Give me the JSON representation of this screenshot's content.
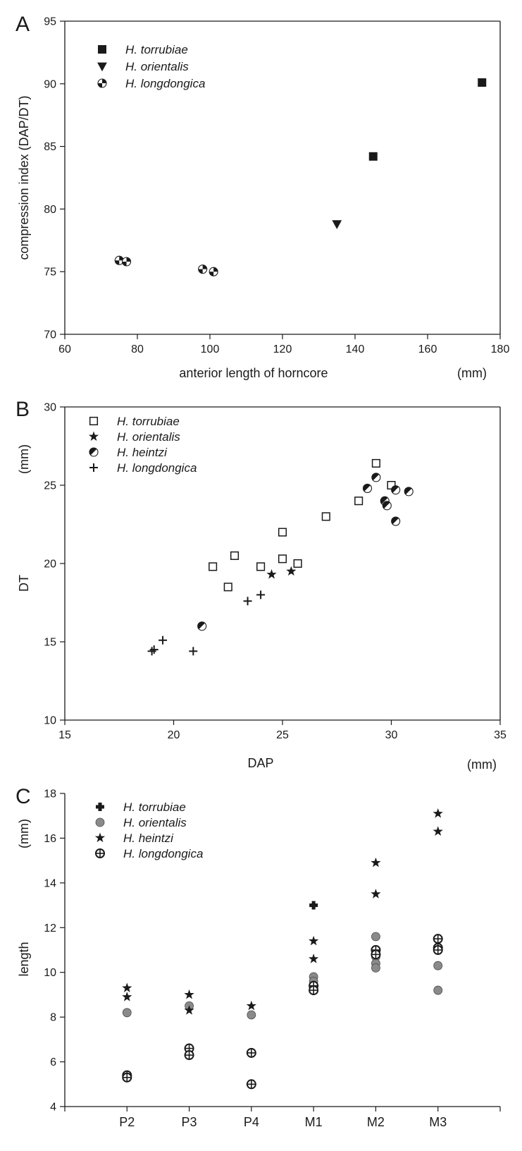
{
  "figure": {
    "panels": [
      "A",
      "B",
      "C"
    ]
  },
  "chart_data": [
    {
      "panel": "A",
      "type": "scatter",
      "title": "",
      "xlabel": "anterior length of horncore",
      "xunit": "(mm)",
      "ylabel": "compression index (DAP/DT)",
      "yunit": "",
      "xlim": [
        60,
        180
      ],
      "ylim": [
        70,
        95
      ],
      "xticks": [
        60,
        80,
        100,
        120,
        140,
        160,
        180
      ],
      "yticks": [
        70,
        75,
        80,
        85,
        90,
        95
      ],
      "grid": false,
      "legend_position": "top-left",
      "series": [
        {
          "name": "H. torrubiae",
          "marker": "filled-square",
          "color": "#1a1a1a",
          "points": [
            [
              145,
              84.2
            ],
            [
              175,
              90.1
            ]
          ]
        },
        {
          "name": "H. orientalis",
          "marker": "filled-triangle-down",
          "color": "#1a1a1a",
          "points": [
            [
              135,
              78.8
            ]
          ]
        },
        {
          "name": "H. longdongica",
          "marker": "checker-circle",
          "color": "#1a1a1a",
          "points": [
            [
              75,
              75.9
            ],
            [
              77,
              75.8
            ],
            [
              98,
              75.2
            ],
            [
              101,
              75.0
            ]
          ]
        }
      ]
    },
    {
      "panel": "B",
      "type": "scatter",
      "title": "",
      "xlabel": "DAP",
      "xunit": "(mm)",
      "ylabel": "DT",
      "yunit": "(mm)",
      "xlim": [
        15,
        35
      ],
      "ylim": [
        10,
        30
      ],
      "xticks": [
        15,
        20,
        25,
        30,
        35
      ],
      "yticks": [
        10,
        15,
        20,
        25,
        30
      ],
      "grid": false,
      "legend_position": "top-left",
      "series": [
        {
          "name": "H. torrubiae",
          "marker": "open-square",
          "color": "#1a1a1a",
          "points": [
            [
              21.8,
              19.8
            ],
            [
              22.5,
              18.5
            ],
            [
              22.8,
              20.5
            ],
            [
              24,
              19.8
            ],
            [
              25,
              20.3
            ],
            [
              25,
              22
            ],
            [
              25.7,
              20
            ],
            [
              27,
              23
            ],
            [
              28.5,
              24
            ],
            [
              29.3,
              26.4
            ],
            [
              30,
              25
            ]
          ]
        },
        {
          "name": "H. orientalis",
          "marker": "star",
          "color": "#1a1a1a",
          "points": [
            [
              24.5,
              19.3
            ],
            [
              25.4,
              19.5
            ]
          ]
        },
        {
          "name": "H. heintzi",
          "marker": "half-circle",
          "color": "#1a1a1a",
          "points": [
            [
              21.3,
              16
            ],
            [
              28.9,
              24.8
            ],
            [
              29.3,
              25.5
            ],
            [
              29.7,
              24
            ],
            [
              29.8,
              23.7
            ],
            [
              30.2,
              24.7
            ],
            [
              30.2,
              22.7
            ],
            [
              30.8,
              24.6
            ]
          ]
        },
        {
          "name": "H. longdongica",
          "marker": "plus",
          "color": "#1a1a1a",
          "points": [
            [
              19,
              14.4
            ],
            [
              19.1,
              14.5
            ],
            [
              19.5,
              15.1
            ],
            [
              20.9,
              14.4
            ],
            [
              23.4,
              17.6
            ],
            [
              24,
              18
            ]
          ]
        }
      ]
    },
    {
      "panel": "C",
      "type": "scatter",
      "title": "",
      "xlabel": "",
      "xunit": "",
      "ylabel": "length",
      "yunit": "(mm)",
      "categories": [
        "P2",
        "P3",
        "P4",
        "M1",
        "M2",
        "M3"
      ],
      "ylim": [
        4,
        18
      ],
      "yticks": [
        4,
        6,
        8,
        10,
        12,
        14,
        16,
        18
      ],
      "grid": false,
      "legend_position": "top-left",
      "series": [
        {
          "name": "H. torrubiae",
          "marker": "bold-cross",
          "color": "#1a1a1a",
          "points": [
            [
              "M1",
              13.0
            ]
          ]
        },
        {
          "name": "H. orientalis",
          "marker": "gray-circle",
          "color": "#8a8a8a",
          "points": [
            [
              "P2",
              8.2
            ],
            [
              "P3",
              8.5
            ],
            [
              "P4",
              8.1
            ],
            [
              "M1",
              9.8
            ],
            [
              "M1",
              9.6
            ],
            [
              "M1",
              9.4
            ],
            [
              "M2",
              11.6
            ],
            [
              "M2",
              11.0
            ],
            [
              "M2",
              10.7
            ],
            [
              "M2",
              10.4
            ],
            [
              "M2",
              10.2
            ],
            [
              "M3",
              10.3
            ],
            [
              "M3",
              9.2
            ]
          ]
        },
        {
          "name": "H. heintzi",
          "marker": "star",
          "color": "#1a1a1a",
          "points": [
            [
              "P2",
              9.3
            ],
            [
              "P2",
              8.9
            ],
            [
              "P3",
              9.0
            ],
            [
              "P3",
              8.3
            ],
            [
              "P4",
              8.5
            ],
            [
              "M1",
              11.4
            ],
            [
              "M1",
              10.6
            ],
            [
              "M2",
              14.9
            ],
            [
              "M2",
              13.5
            ],
            [
              "M3",
              17.1
            ],
            [
              "M3",
              16.3
            ]
          ]
        },
        {
          "name": "H. longdongica",
          "marker": "crossed-circle",
          "color": "#1a1a1a",
          "points": [
            [
              "P2",
              5.4
            ],
            [
              "P2",
              5.3
            ],
            [
              "P3",
              6.6
            ],
            [
              "P3",
              6.3
            ],
            [
              "P4",
              6.4
            ],
            [
              "P4",
              5.0
            ],
            [
              "M1",
              9.4
            ],
            [
              "M1",
              9.2
            ],
            [
              "M2",
              11.0
            ],
            [
              "M2",
              10.8
            ],
            [
              "M3",
              11.5
            ],
            [
              "M3",
              11.1
            ],
            [
              "M3",
              11.0
            ]
          ]
        }
      ]
    }
  ]
}
